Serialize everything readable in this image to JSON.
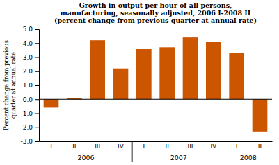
{
  "chart_data": {
    "type": "bar",
    "title": "Growth in output per hour of all persons,\nmanufacturing, seasonally adjusted, 2006 I-2008 II\n(percent change from previous quarter at annual rate)",
    "y_label": "Percent change from previous\nquarter at annual rate",
    "categories": [
      "I",
      "II",
      "III",
      "IV",
      "I",
      "II",
      "III",
      "IV",
      "I",
      "II"
    ],
    "groups": [
      {
        "label": "2006",
        "size": 4
      },
      {
        "label": "2007",
        "size": 4
      },
      {
        "label": "2008",
        "size": 2
      }
    ],
    "values": [
      -0.6,
      0.1,
      4.2,
      2.2,
      3.6,
      3.7,
      4.4,
      4.1,
      3.3,
      -2.3
    ],
    "color": "#CC5500",
    "ylim": [
      -3.0,
      5.0
    ],
    "yticks": [
      {
        "value": -3.0,
        "label": "-3.0"
      },
      {
        "value": -2.0,
        "label": "-2.0"
      },
      {
        "value": -1.0,
        "label": "-1.0"
      },
      {
        "value": 0.0,
        "label": "0.0"
      },
      {
        "value": 1.0,
        "label": "1.0"
      },
      {
        "value": 2.0,
        "label": "2.0"
      },
      {
        "value": 3.0,
        "label": "3.0"
      },
      {
        "value": 4.0,
        "label": "4.0"
      },
      {
        "value": 5.0,
        "label": "5.0"
      }
    ],
    "grid": false
  }
}
